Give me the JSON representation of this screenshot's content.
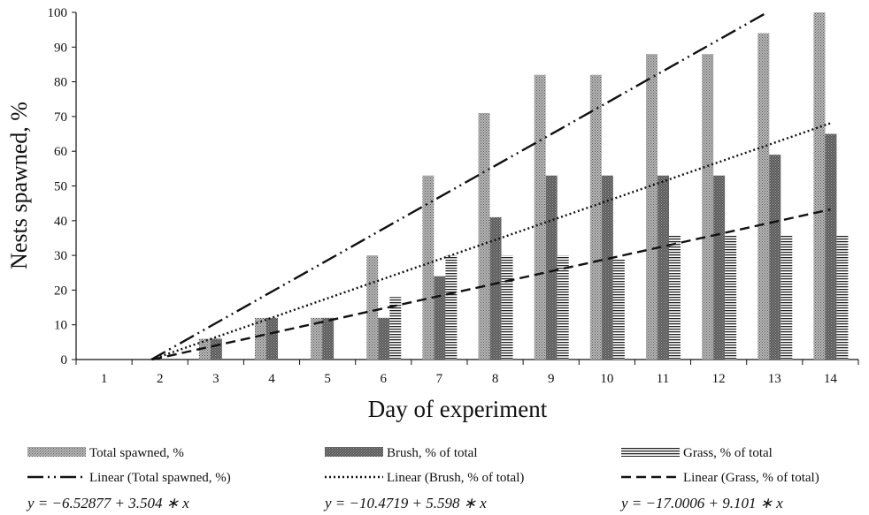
{
  "chart_data": {
    "type": "bar",
    "xlabel": "Day of experiment",
    "ylabel": "Nests spawned, %",
    "ylim": [
      0,
      100
    ],
    "yticks": [
      0,
      10,
      20,
      30,
      40,
      50,
      60,
      70,
      80,
      90,
      100
    ],
    "categories": [
      "1",
      "2",
      "3",
      "4",
      "5",
      "6",
      "7",
      "8",
      "9",
      "10",
      "11",
      "12",
      "13",
      "14"
    ],
    "grid": false,
    "legend_position": "bottom",
    "series": [
      {
        "name": "Total spawned, %",
        "pattern": "dots",
        "values": [
          0,
          0,
          6,
          12,
          12,
          30,
          53,
          71,
          82,
          82,
          88,
          88,
          94,
          100
        ]
      },
      {
        "name": "Brush, % of total",
        "pattern": "dark-dots",
        "values": [
          0,
          0,
          6,
          12,
          12,
          12,
          24,
          41,
          53,
          53,
          53,
          53,
          59,
          65
        ]
      },
      {
        "name": "Grass, % of total",
        "pattern": "horizontal-lines",
        "values": [
          0,
          0,
          0,
          0,
          0,
          18,
          30,
          30,
          30,
          29,
          36,
          36,
          36,
          36
        ]
      }
    ],
    "trendlines": [
      {
        "name": "Linear (Total spawned, %)",
        "dash": "dash-dot-dot",
        "intercept": -6.52877,
        "slope": 3.504,
        "equation": "y = −6.52877 + 3.504 ∗ x"
      },
      {
        "name": "Linear (Brush, % of total)",
        "dash": "dotted",
        "intercept": -10.4719,
        "slope": 5.598,
        "equation": "y = −10.4719 + 5.598 ∗ x"
      },
      {
        "name": "Linear (Grass, % of total)",
        "dash": "dashed",
        "intercept": -17.0006,
        "slope": 9.101,
        "equation": "y = −17.0006 + 9.101 ∗ x"
      }
    ]
  }
}
